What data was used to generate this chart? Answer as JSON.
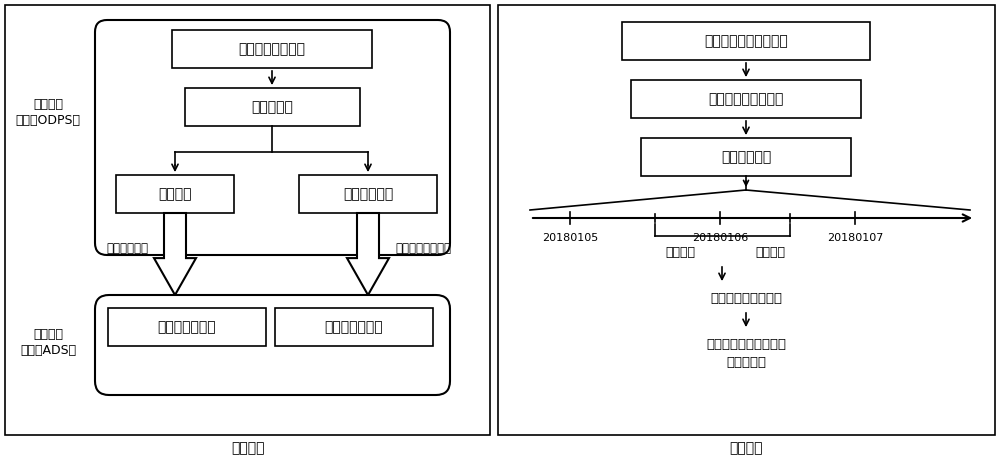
{
  "fig_width": 10.0,
  "fig_height": 4.58,
  "bg_color": "#ffffff",
  "font_name": "sans-serif",
  "left_panel_title": "数据处理",
  "right_panel_title": "在线检索",
  "offline_line1": "离线引擎",
  "offline_line2": "（例如ODPS）",
  "realtime_line1": "实时引擎",
  "realtime_line2": "（例如ADS）",
  "box1_text": "定位采集日志数据",
  "box2_text": "数据预处理",
  "box3_text": "轨迹签名",
  "box4_text": "轨迹压缩存储",
  "box5_text": "签名的轨迹数据",
  "box6_text": "压缩的轨迹数据",
  "sync_left_text": "同步签名数据",
  "sync_right_text": "同步压缩轨迹数据",
  "rbox1_text": "指定查询对象和时间段",
  "rbox2_text": "获取签名和轨迹明细",
  "rbox3_text": "进行检索查询",
  "tl_label1": "20180105",
  "tl_label2": "20180106",
  "tl_label3": "20180107",
  "query1_text": "轨迹查询",
  "query2_text": "签名查询",
  "candidate_text": "候选集，相似度计算",
  "final_text1": "拉取轨迹明细并且进行",
  "final_text2": "相似度精算"
}
